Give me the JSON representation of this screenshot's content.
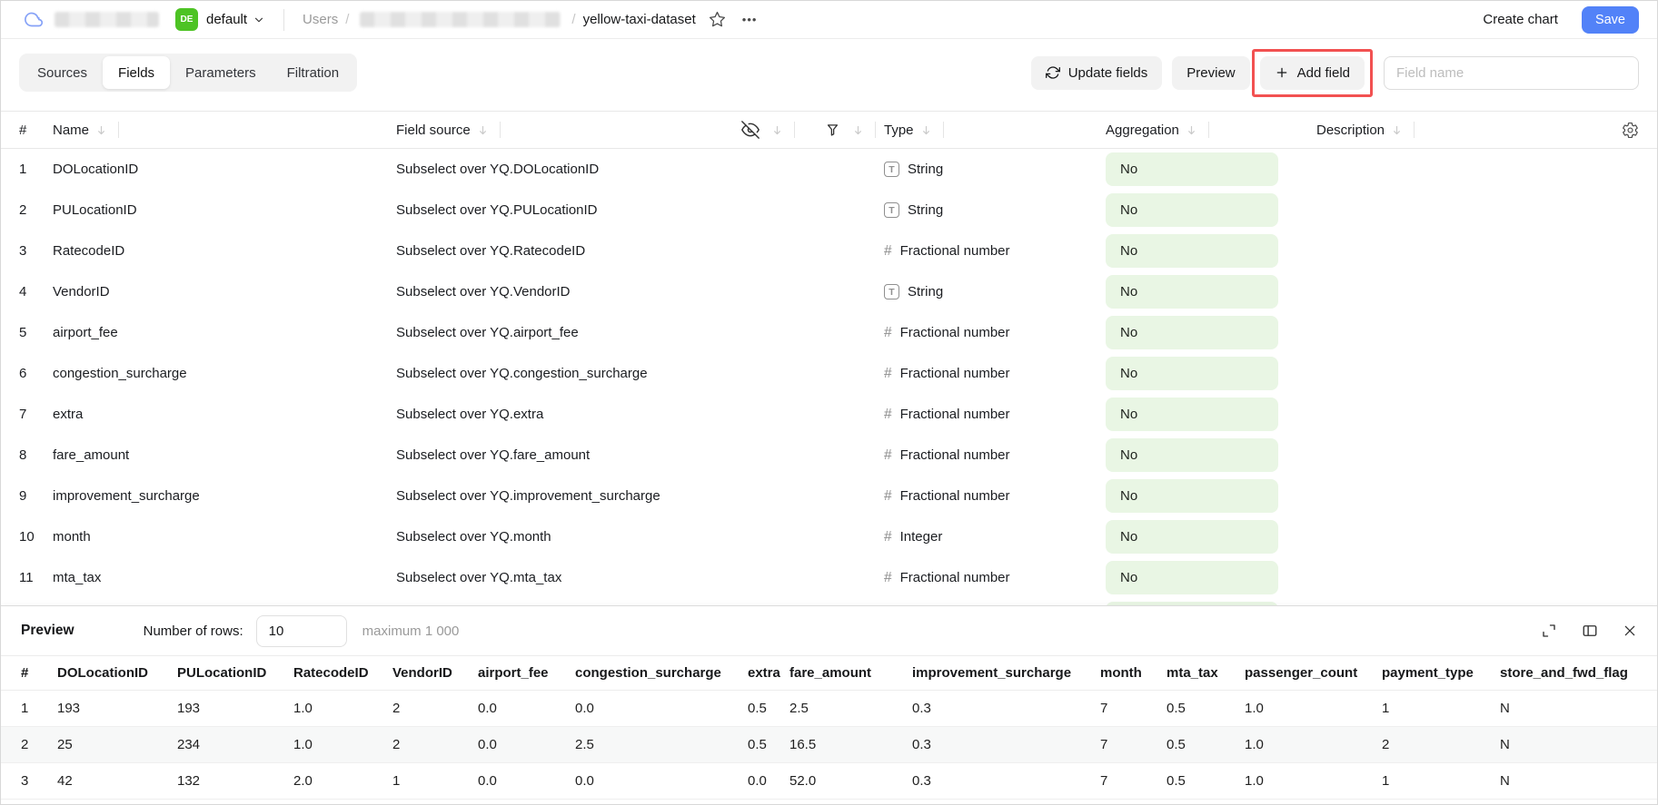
{
  "colors": {
    "accent-blue": "#5282f8",
    "badge-green": "#4dc324",
    "pill-green": "#e9f6e4",
    "annotation-red": "#f25151"
  },
  "topbar": {
    "workspace_badge": "DE",
    "workspace_name": "default",
    "breadcrumb_root": "Users",
    "breadcrumb_sep": "/",
    "breadcrumb_current": "yellow-taxi-dataset",
    "more_label": "•••",
    "create_chart_label": "Create chart",
    "save_label": "Save"
  },
  "toolbar": {
    "tabs": [
      {
        "label": "Sources",
        "active": false,
        "annotated": false
      },
      {
        "label": "Fields",
        "active": true,
        "annotated": true
      },
      {
        "label": "Parameters",
        "active": false,
        "annotated": false
      },
      {
        "label": "Filtration",
        "active": false,
        "annotated": false
      }
    ],
    "update_fields_label": "Update fields",
    "preview_label": "Preview",
    "add_field_label": "Add field",
    "field_name_placeholder": "Field name"
  },
  "fields_table": {
    "columns": {
      "index": "#",
      "name": "Name",
      "field_source": "Field source",
      "type": "Type",
      "aggregation": "Aggregation",
      "description": "Description"
    },
    "icon_columns": [
      "hidden-eye-off-icon",
      "filter-funnel-icon"
    ],
    "partial_next_row_pill_visible": true,
    "rows": [
      {
        "index": "1",
        "name": "DOLocationID",
        "source": "Subselect over YQ.DOLocationID",
        "type": "String",
        "type_kind": "string",
        "aggregation": "No"
      },
      {
        "index": "2",
        "name": "PULocationID",
        "source": "Subselect over YQ.PULocationID",
        "type": "String",
        "type_kind": "string",
        "aggregation": "No"
      },
      {
        "index": "3",
        "name": "RatecodeID",
        "source": "Subselect over YQ.RatecodeID",
        "type": "Fractional number",
        "type_kind": "number",
        "aggregation": "No"
      },
      {
        "index": "4",
        "name": "VendorID",
        "source": "Subselect over YQ.VendorID",
        "type": "String",
        "type_kind": "string",
        "aggregation": "No"
      },
      {
        "index": "5",
        "name": "airport_fee",
        "source": "Subselect over YQ.airport_fee",
        "type": "Fractional number",
        "type_kind": "number",
        "aggregation": "No"
      },
      {
        "index": "6",
        "name": "congestion_surcharge",
        "source": "Subselect over YQ.congestion_surcharge",
        "type": "Fractional number",
        "type_kind": "number",
        "aggregation": "No"
      },
      {
        "index": "7",
        "name": "extra",
        "source": "Subselect over YQ.extra",
        "type": "Fractional number",
        "type_kind": "number",
        "aggregation": "No"
      },
      {
        "index": "8",
        "name": "fare_amount",
        "source": "Subselect over YQ.fare_amount",
        "type": "Fractional number",
        "type_kind": "number",
        "aggregation": "No"
      },
      {
        "index": "9",
        "name": "improvement_surcharge",
        "source": "Subselect over YQ.improvement_surcharge",
        "type": "Fractional number",
        "type_kind": "number",
        "aggregation": "No"
      },
      {
        "index": "10",
        "name": "month",
        "source": "Subselect over YQ.month",
        "type": "Integer",
        "type_kind": "number",
        "aggregation": "No"
      },
      {
        "index": "11",
        "name": "mta_tax",
        "source": "Subselect over YQ.mta_tax",
        "type": "Fractional number",
        "type_kind": "number",
        "aggregation": "No"
      }
    ]
  },
  "preview": {
    "title": "Preview",
    "rows_label": "Number of rows:",
    "rows_value": "10",
    "max_label": "maximum 1 000",
    "table": {
      "columns": [
        "#",
        "DOLocationID",
        "PULocationID",
        "RatecodeID",
        "VendorID",
        "airport_fee",
        "congestion_surcharge",
        "extra",
        "fare_amount",
        "improvement_surcharge",
        "month",
        "mta_tax",
        "passenger_count",
        "payment_type",
        "store_and_fwd_flag"
      ],
      "rows": [
        [
          "1",
          "193",
          "193",
          "1.0",
          "2",
          "0.0",
          "0.0",
          "0.5",
          "2.5",
          "0.3",
          "7",
          "0.5",
          "1.0",
          "1",
          "N"
        ],
        [
          "2",
          "25",
          "234",
          "1.0",
          "2",
          "0.0",
          "2.5",
          "0.5",
          "16.5",
          "0.3",
          "7",
          "0.5",
          "1.0",
          "2",
          "N"
        ],
        [
          "3",
          "42",
          "132",
          "2.0",
          "1",
          "0.0",
          "0.0",
          "0.0",
          "52.0",
          "0.3",
          "7",
          "0.5",
          "1.0",
          "1",
          "N"
        ]
      ]
    }
  }
}
